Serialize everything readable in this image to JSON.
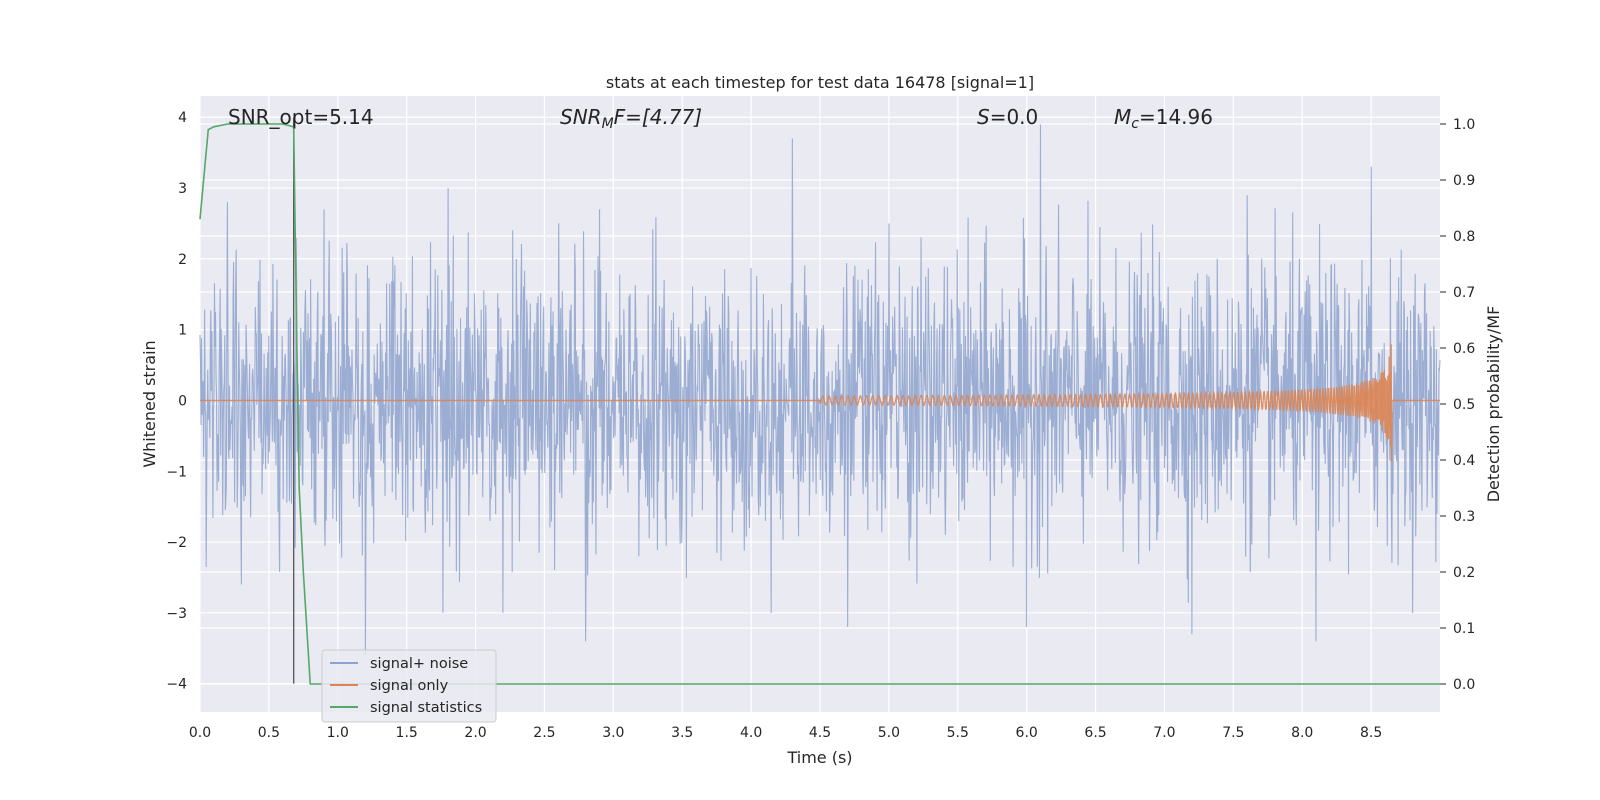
{
  "chart_data": {
    "type": "line",
    "title": "stats at each timestep for test data 16478 [signal=1]",
    "xlabel": "Time (s)",
    "ylabel_left": "Whitened strain",
    "ylabel_right": "Detection probability/MF",
    "xlim": [
      0.0,
      9.0
    ],
    "ylim_left": [
      -4.4,
      4.3
    ],
    "ylim_right": [
      -0.05,
      1.05
    ],
    "x_ticks": [
      "0.0",
      "0.5",
      "1.0",
      "1.5",
      "2.0",
      "2.5",
      "3.0",
      "3.5",
      "4.0",
      "4.5",
      "5.0",
      "5.5",
      "6.0",
      "6.5",
      "7.0",
      "7.5",
      "8.0",
      "8.5"
    ],
    "y_ticks_left": [
      "4",
      "3",
      "2",
      "1",
      "0",
      "−1",
      "−2",
      "−3",
      "−4"
    ],
    "y_ticks_right": [
      "1.0",
      "0.9",
      "0.8",
      "0.7",
      "0.6",
      "0.5",
      "0.4",
      "0.3",
      "0.2",
      "0.1",
      "0.0"
    ],
    "grid": true,
    "legend_position": "lower-left",
    "annotations": {
      "snr_opt": "SNR_opt=5.14",
      "snr_mf_name": "SNR",
      "snr_mf_sub": "M",
      "snr_mf_rest": "F=[4.77]",
      "s_name": "S",
      "s_rest": "=0.0",
      "mc_name": "M",
      "mc_sub": "c",
      "mc_rest": "=14.96"
    },
    "series": [
      {
        "name": "signal+ noise",
        "color": "#8da2cc",
        "axis": "left",
        "description_values": "noisy whitened strain, dense oscillation roughly between -3.4 and 3.9",
        "envelope_peaks_pos": [
          [
            0.2,
            2.8
          ],
          [
            0.9,
            2.7
          ],
          [
            1.8,
            3.0
          ],
          [
            2.9,
            2.7
          ],
          [
            4.3,
            3.7
          ],
          [
            5.0,
            2.5
          ],
          [
            6.1,
            3.9
          ],
          [
            7.6,
            2.9
          ],
          [
            8.5,
            3.3
          ]
        ],
        "envelope_peaks_neg": [
          [
            0.3,
            -2.6
          ],
          [
            1.2,
            -3.6
          ],
          [
            2.2,
            -3.0
          ],
          [
            2.8,
            -3.4
          ],
          [
            4.7,
            -3.2
          ],
          [
            6.0,
            -3.2
          ],
          [
            7.2,
            -3.3
          ],
          [
            8.1,
            -3.4
          ]
        ]
      },
      {
        "name": "signal only",
        "color": "#dd8452",
        "axis": "left",
        "chirp": {
          "start": 4.5,
          "merger": 8.65,
          "peak_amplitude": 0.9
        }
      },
      {
        "name": "signal statistics",
        "color": "#55a868",
        "axis": "right",
        "x": [
          0.0,
          0.06,
          0.1,
          0.2,
          0.3,
          0.4,
          0.5,
          0.6,
          0.68,
          0.7,
          0.72,
          0.75,
          0.8,
          9.0
        ],
        "values": [
          0.83,
          0.99,
          0.995,
          1.0,
          1.0,
          1.0,
          1.0,
          1.0,
          0.995,
          0.65,
          0.35,
          0.2,
          0.0,
          0.0
        ]
      }
    ],
    "marker_line": {
      "x": 0.68,
      "color": "#555555",
      "y_from": -4.0,
      "y_to": 4.0
    }
  }
}
